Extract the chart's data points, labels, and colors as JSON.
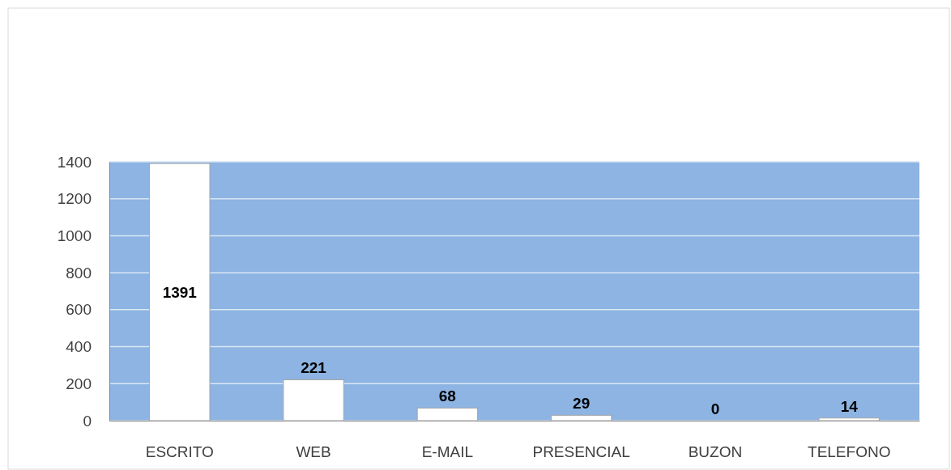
{
  "chart_data": {
    "type": "bar",
    "categories": [
      "ESCRITO",
      "WEB",
      "E-MAIL",
      "PRESENCIAL",
      "BUZON",
      "TELEFONO"
    ],
    "values": [
      1391,
      221,
      68,
      29,
      0,
      14
    ],
    "color": "#ffffff",
    "ylim": [
      0,
      1400
    ],
    "yticks": [
      0,
      200,
      400,
      600,
      800,
      1000,
      1200,
      1400
    ],
    "grid": "y",
    "data_labels": true
  }
}
